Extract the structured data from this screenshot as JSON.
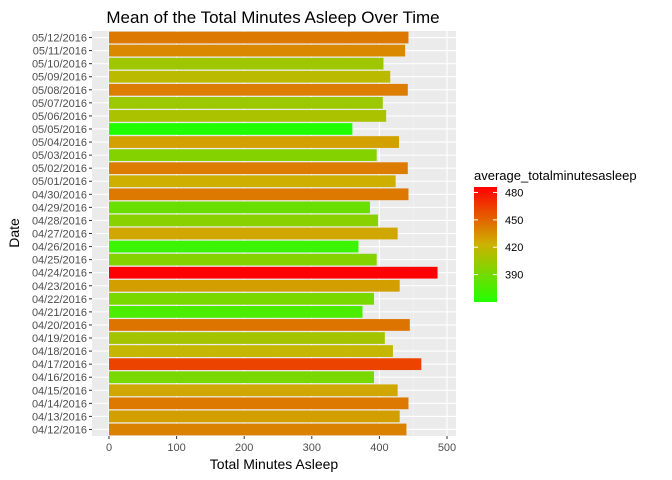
{
  "chart_data": {
    "type": "bar",
    "orientation": "horizontal",
    "title": "Mean of the Total Minutes Asleep Over Time",
    "xlabel": "Total Minutes Asleep",
    "ylabel": "Date",
    "xlim": [
      0,
      500
    ],
    "x_ticks": [
      0,
      100,
      200,
      300,
      400,
      500
    ],
    "grid": true,
    "categories": [
      "04/12/2016",
      "04/13/2016",
      "04/14/2016",
      "04/15/2016",
      "04/16/2016",
      "04/17/2016",
      "04/18/2016",
      "04/19/2016",
      "04/20/2016",
      "04/21/2016",
      "04/22/2016",
      "04/23/2016",
      "04/24/2016",
      "04/25/2016",
      "04/26/2016",
      "04/27/2016",
      "04/28/2016",
      "04/29/2016",
      "04/30/2016",
      "05/01/2016",
      "05/02/2016",
      "05/03/2016",
      "05/04/2016",
      "05/05/2016",
      "05/06/2016",
      "05/07/2016",
      "05/08/2016",
      "05/09/2016",
      "05/10/2016",
      "05/11/2016",
      "05/12/2016"
    ],
    "values": [
      440,
      430,
      443,
      427,
      392,
      462,
      420,
      408,
      445,
      375,
      392,
      430,
      486,
      396,
      369,
      427,
      398,
      386,
      443,
      424,
      442,
      396,
      429,
      360,
      410,
      405,
      442,
      416,
      406,
      438,
      443
    ],
    "legend": {
      "title": "average_totalminutesasleep",
      "position": "right",
      "ticks": [
        390,
        420,
        450,
        480
      ],
      "range": [
        360,
        486
      ],
      "colors": {
        "low": "#22ff00",
        "mid": "#cdb200",
        "high": "#ff0000"
      }
    }
  }
}
